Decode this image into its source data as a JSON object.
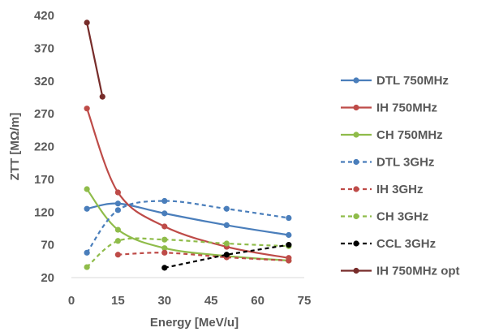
{
  "chart_data": {
    "type": "scatter",
    "title": "",
    "xlabel": "Energy [MeV/u]",
    "ylabel": "ZTT [MΩ/m]",
    "xlim": [
      0,
      75
    ],
    "ylim": [
      20,
      420
    ],
    "xticks": [
      0,
      15,
      30,
      45,
      60,
      75
    ],
    "yticks": [
      20,
      70,
      120,
      170,
      220,
      270,
      320,
      370,
      420
    ],
    "grid": false,
    "legend_position": "right",
    "series": [
      {
        "name": "DTL 750MHz",
        "color": "#4a7ebb",
        "dash": "solid",
        "smooth": true,
        "x": [
          5,
          15,
          30,
          50,
          70
        ],
        "y": [
          125,
          133,
          118,
          100,
          85
        ]
      },
      {
        "name": "IH 750MHz",
        "color": "#be4b48",
        "dash": "solid",
        "smooth": true,
        "x": [
          5,
          15,
          30,
          50,
          70
        ],
        "y": [
          278,
          150,
          98,
          67,
          50
        ]
      },
      {
        "name": "CH 750MHz",
        "color": "#8fbc4a",
        "dash": "solid",
        "smooth": true,
        "x": [
          5,
          15,
          30,
          50,
          70
        ],
        "y": [
          155,
          93,
          65,
          53,
          46
        ]
      },
      {
        "name": "DTL 3GHz",
        "color": "#4a7ebb",
        "dash": "dashed",
        "smooth": true,
        "x": [
          5,
          15,
          30,
          50,
          70
        ],
        "y": [
          58,
          123,
          137,
          125,
          111
        ]
      },
      {
        "name": "IH 3GHz",
        "color": "#be4b48",
        "dash": "dashed",
        "smooth": true,
        "x": [
          15,
          30,
          50,
          70
        ],
        "y": [
          55,
          58,
          51,
          46
        ]
      },
      {
        "name": "CH 3GHz",
        "color": "#8fbc4a",
        "dash": "dashed",
        "smooth": true,
        "x": [
          5,
          15,
          30,
          50,
          70
        ],
        "y": [
          36,
          76,
          78,
          72,
          68
        ]
      },
      {
        "name": "CCL 3GHz",
        "color": "#000000",
        "dash": "dashed",
        "smooth": false,
        "x": [
          30,
          50,
          70
        ],
        "y": [
          35,
          55,
          70
        ]
      },
      {
        "name": "IH  750MHz opt",
        "color": "#772c2a",
        "dash": "solid",
        "smooth": false,
        "x": [
          5,
          10
        ],
        "y": [
          409,
          296
        ]
      }
    ]
  }
}
